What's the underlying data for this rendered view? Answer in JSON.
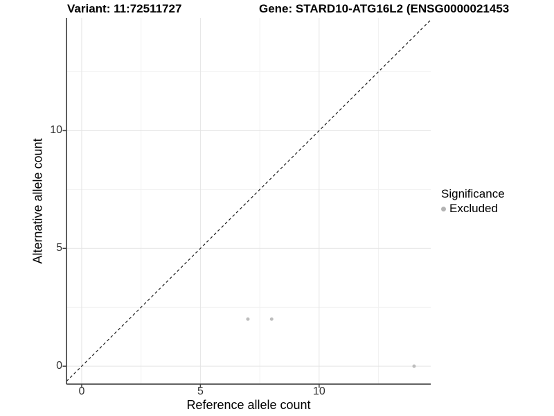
{
  "header": {
    "title_left": "Variant: 11:72511727",
    "title_right": "Gene: STARD10-ATG16L2 (ENSG0000021453"
  },
  "chart_data": {
    "type": "scatter",
    "xlabel": "Reference allele count",
    "ylabel": "Alternative allele count",
    "xlim": [
      -0.64,
      14.7
    ],
    "ylim": [
      -0.76,
      14.78
    ],
    "x_ticks": [
      0,
      5,
      10
    ],
    "y_ticks": [
      0,
      5,
      10
    ],
    "x_minor_ticks": [
      2.5,
      7.5,
      12.5
    ],
    "y_minor_ticks": [
      2.5,
      7.5,
      12.5
    ],
    "grid": "major and minor gridlines on white background",
    "series": [
      {
        "name": "Excluded",
        "color": "#bdbdbd",
        "point_radius": 2.5,
        "points": [
          [
            7,
            2
          ],
          [
            8,
            2
          ],
          [
            14,
            0
          ]
        ]
      }
    ],
    "reference_line": {
      "type": "identity y=x",
      "style": "dashed",
      "color": "#1a1a1a"
    },
    "legend": {
      "title": "Significance",
      "position": "right",
      "items": [
        {
          "label": "Excluded",
          "color": "#b3b3b3"
        }
      ]
    }
  },
  "colors": {
    "background": "#ffffff",
    "grid_major": "#e4e4e4",
    "grid_minor": "#f1f1f1",
    "axis_line": "#4d4d4d",
    "tick_mark": "#404040"
  }
}
